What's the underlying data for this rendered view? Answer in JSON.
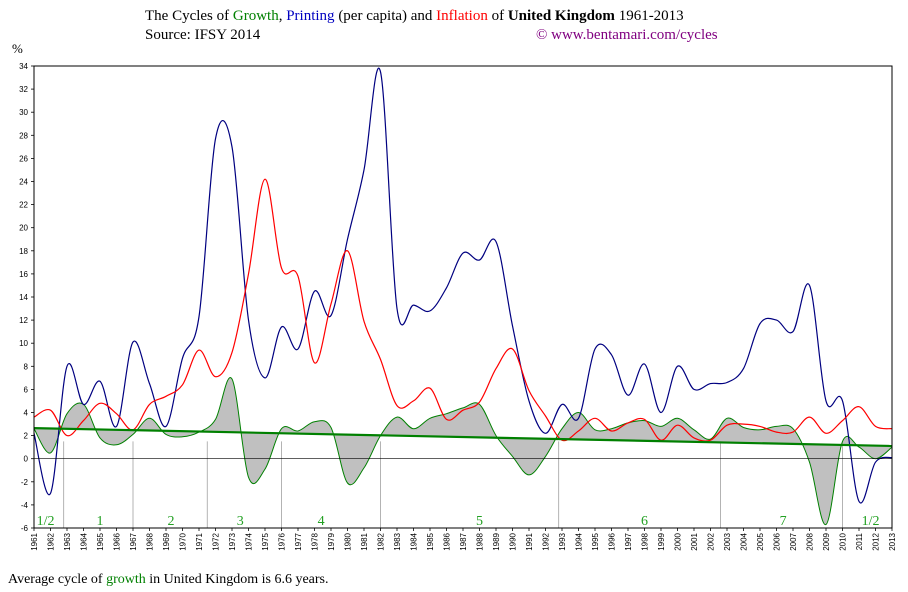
{
  "title": {
    "prefix": "The Cycles of ",
    "growth_word": "Growth",
    "sep1": ", ",
    "printing_word": "Printing",
    "per_capita": " (per capita) and ",
    "inflation_word": "Inflation",
    "of_word": " of ",
    "country": "United Kingdom",
    "years": " 1961-2013"
  },
  "source": "Source: IFSY 2014",
  "credit": "© www.bentamari.com/cycles",
  "y_unit": "%",
  "footer": {
    "prefix": "Average cycle of ",
    "growth_word": "growth",
    "suffix": " in United Kingdom is 6.6 years."
  },
  "colors": {
    "growth": "#008000",
    "growth_fill": "#c0c0c0",
    "printing": "#000080",
    "inflation": "#ff0000",
    "trend": "#008000",
    "credit": "#800080",
    "cycle_label": "#22a022"
  },
  "chart_data": {
    "type": "line",
    "title": "The Cycles of Growth, Printing (per capita) and Inflation of United Kingdom 1961-2013",
    "ylabel": "%",
    "xlabel": "",
    "ylim": [
      -6,
      34
    ],
    "yticks": [
      -6,
      -4,
      -2,
      0,
      2,
      4,
      6,
      8,
      10,
      12,
      14,
      16,
      18,
      20,
      22,
      24,
      26,
      28,
      30,
      32,
      34
    ],
    "x": [
      1961,
      1962,
      1963,
      1964,
      1965,
      1966,
      1967,
      1968,
      1969,
      1970,
      1971,
      1972,
      1973,
      1974,
      1975,
      1976,
      1977,
      1978,
      1979,
      1980,
      1981,
      1982,
      1983,
      1984,
      1985,
      1986,
      1987,
      1988,
      1989,
      1990,
      1991,
      1992,
      1993,
      1994,
      1995,
      1996,
      1997,
      1998,
      1999,
      2000,
      2001,
      2002,
      2003,
      2004,
      2005,
      2006,
      2007,
      2008,
      2009,
      2010,
      2011,
      2012,
      2013
    ],
    "series": [
      {
        "name": "Growth",
        "values": [
          2.6,
          0.5,
          3.9,
          4.7,
          1.8,
          1.2,
          2.1,
          3.5,
          2.1,
          1.9,
          2.3,
          3.4,
          6.9,
          -1.6,
          -0.9,
          2.6,
          2.4,
          3.2,
          2.7,
          -2.1,
          -0.8,
          2.0,
          3.6,
          2.6,
          3.5,
          3.9,
          4.4,
          4.7,
          2.0,
          0.2,
          -1.4,
          0.2,
          2.6,
          4.0,
          2.5,
          2.6,
          3.1,
          3.3,
          2.8,
          3.5,
          2.5,
          1.7,
          3.5,
          2.7,
          2.5,
          2.8,
          2.6,
          -0.3,
          -5.7,
          1.5,
          1.0,
          0.0,
          1.0
        ]
      },
      {
        "name": "Printing",
        "values": [
          2.2,
          -3.0,
          8.0,
          4.7,
          6.7,
          2.8,
          10.1,
          6.5,
          2.8,
          8.7,
          12.3,
          27.7,
          27.0,
          12.0,
          7.0,
          11.4,
          9.5,
          14.5,
          12.4,
          19.0,
          25.0,
          33.5,
          13.0,
          13.3,
          12.8,
          14.8,
          17.8,
          17.2,
          18.8,
          11.5,
          5.0,
          2.2,
          4.7,
          3.5,
          9.5,
          9.0,
          5.5,
          8.2,
          4.0,
          8.0,
          6.0,
          6.5,
          6.6,
          7.8,
          11.7,
          12.0,
          11.0,
          15.0,
          5.0,
          5.0,
          -3.7,
          -0.3,
          0.1
        ]
      },
      {
        "name": "Inflation",
        "values": [
          3.6,
          4.2,
          2.0,
          3.3,
          4.8,
          3.9,
          2.5,
          4.7,
          5.4,
          6.4,
          9.4,
          7.1,
          9.2,
          16.0,
          24.2,
          16.5,
          15.8,
          8.3,
          13.4,
          18.0,
          11.9,
          8.6,
          4.6,
          5.0,
          6.1,
          3.4,
          4.2,
          4.9,
          7.8,
          9.5,
          5.9,
          3.7,
          1.6,
          2.4,
          3.5,
          2.4,
          3.1,
          3.4,
          1.6,
          2.9,
          1.8,
          1.6,
          2.9,
          3.0,
          2.8,
          2.3,
          2.3,
          3.6,
          2.2,
          3.3,
          4.5,
          2.8,
          2.6
        ]
      }
    ],
    "trend": {
      "name": "Growth trend",
      "start": [
        1961,
        2.65
      ],
      "end": [
        2013,
        1.1
      ]
    },
    "cycle_dividers": [
      1962.8,
      1967,
      1971.5,
      1976,
      1982,
      1992.8,
      2002.6,
      2010
    ],
    "cycle_labels": [
      {
        "text": "1/2",
        "x": 1961.7
      },
      {
        "text": "1",
        "x": 1965
      },
      {
        "text": "2",
        "x": 1969.3
      },
      {
        "text": "3",
        "x": 1973.5
      },
      {
        "text": "4",
        "x": 1978.4
      },
      {
        "text": "5",
        "x": 1988
      },
      {
        "text": "6",
        "x": 1998
      },
      {
        "text": "7",
        "x": 2006.4
      },
      {
        "text": "1/2",
        "x": 2011.7
      }
    ],
    "grid": false,
    "legend": "none"
  }
}
